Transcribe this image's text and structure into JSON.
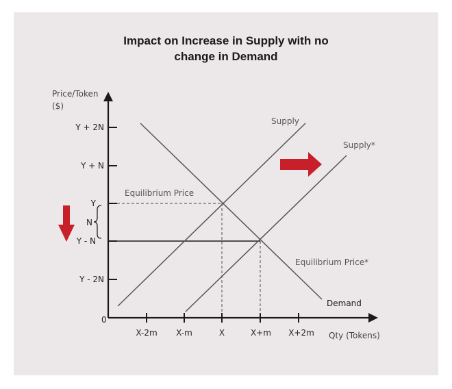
{
  "title_line1": "Impact on Increase in Supply with no",
  "title_line2": "change in Demand",
  "y_axis": {
    "label_line1": "Price/Token",
    "label_line2": "($)"
  },
  "x_axis": {
    "label": "Qty (Tokens)"
  },
  "origin_label": "0",
  "y_ticks": [
    "Y + 2N",
    "Y + N",
    "Y",
    "Y - N",
    "Y - 2N"
  ],
  "x_ticks": [
    "X-2m",
    "X-m",
    "X",
    "X+m",
    "X+2m"
  ],
  "n_label": "N",
  "curves": {
    "supply": "Supply",
    "supply_new": "Supply*",
    "demand": "Demand"
  },
  "annotations": {
    "equilibrium": "Equilibrium Price",
    "equilibrium_new": "Equilibrium Price*"
  },
  "colors": {
    "background": "#ece8ea",
    "axis": "#1a1a1a",
    "lines": "#555555",
    "arrow": "#c8202b"
  },
  "icons": {
    "shift_right": "arrow-right-icon",
    "price_down": "arrow-down-icon"
  }
}
